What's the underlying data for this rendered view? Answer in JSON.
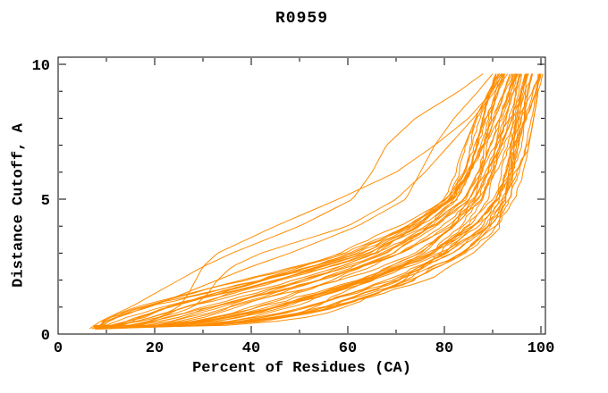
{
  "chart_data": {
    "type": "line",
    "title": "R0959",
    "xlabel": "Percent of Residues (CA)",
    "ylabel": "Distance Cutoff, A",
    "xlim": [
      0,
      101
    ],
    "ylim": [
      0,
      10.3
    ],
    "x_ticks": [
      0,
      20,
      40,
      60,
      80,
      100
    ],
    "x_minor_step": 10,
    "y_ticks": [
      0,
      5,
      10
    ],
    "y_minor_step": 1,
    "grid": false,
    "legend": "none",
    "line_color": "#ff8c00",
    "axis_color": "#000000",
    "background": "#ffffff",
    "curve_count_total": 48,
    "cutoff_max_plotted": 9.65,
    "curve_start": {
      "percent_min": 7.2,
      "percent_max": 9.5,
      "cutoff_min": 0.18,
      "cutoff_max": 0.32
    },
    "cutoff_levels": [
      0.2,
      0.25,
      0.5,
      0.75,
      1,
      1.5,
      2,
      2.5,
      3,
      4,
      5,
      6,
      7,
      8,
      9,
      9.65
    ],
    "band": {
      "count": 44,
      "percent_best": [
        12,
        30,
        48,
        57,
        63,
        70,
        77,
        81,
        86,
        92,
        95,
        96.5,
        97.5,
        98.5,
        99.5,
        100.5
      ],
      "percent_worst": [
        6.5,
        7,
        9.5,
        12.5,
        16,
        27,
        38,
        49,
        58,
        70,
        78.5,
        82,
        84.2,
        86.5,
        89,
        90.5
      ]
    },
    "outlier_curves": [
      {
        "percents": [
          6.5,
          7,
          9,
          12,
          15,
          20,
          25,
          30,
          36,
          50,
          61,
          65,
          68,
          74,
          83,
          88
        ]
      },
      {
        "percents": [
          7,
          8,
          10,
          14,
          19,
          26,
          33,
          40,
          48,
          62,
          72,
          75,
          78,
          82,
          87,
          90
        ]
      },
      {
        "percents": [
          8,
          9,
          17,
          22,
          25,
          27,
          28.5,
          30,
          33,
          45,
          58,
          70,
          78,
          85,
          90,
          92
        ]
      },
      {
        "percents": [
          8,
          9,
          18,
          24,
          28,
          31,
          33,
          36,
          42,
          60,
          70,
          76,
          81,
          86,
          90.5,
          92.5
        ]
      }
    ]
  }
}
